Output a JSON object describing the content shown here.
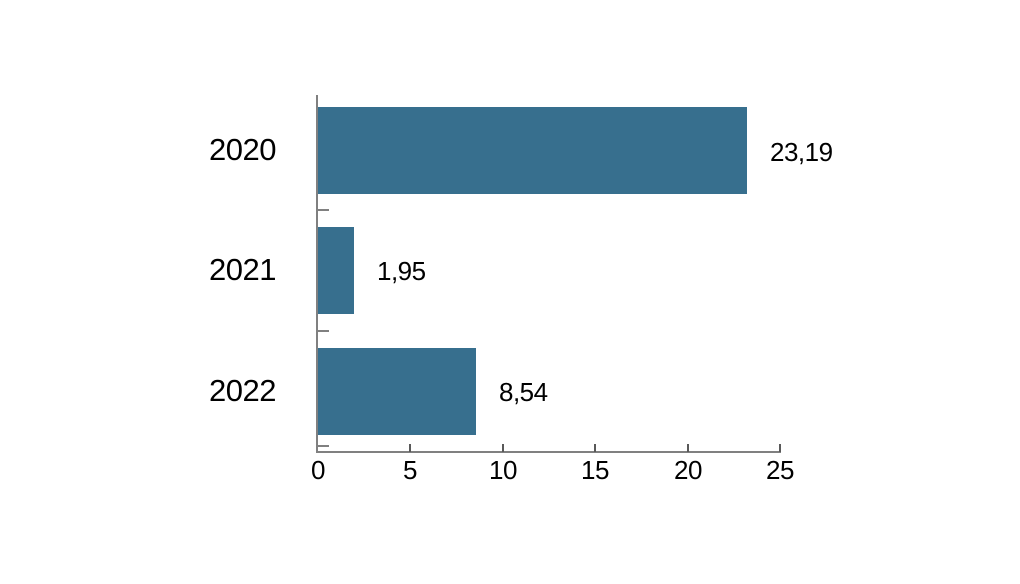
{
  "chart_data": {
    "type": "bar",
    "orientation": "horizontal",
    "title": "",
    "xlabel": "",
    "ylabel": "",
    "categories": [
      "2020",
      "2021",
      "2022"
    ],
    "values": [
      23.19,
      1.95,
      8.54
    ],
    "value_labels": [
      "23,19",
      "1,95",
      "8,54"
    ],
    "xlim": [
      0,
      25
    ],
    "x_ticks": [
      0,
      5,
      10,
      15,
      20,
      25
    ],
    "x_tick_labels": [
      "0",
      "5",
      "10",
      "15",
      "20",
      "25"
    ],
    "grid": "off",
    "legend": "none",
    "colors": {
      "bar": "#376F8E",
      "axis": "#808080",
      "tick": "#595959",
      "text": "#000000",
      "background": "#FFFFFF"
    }
  }
}
